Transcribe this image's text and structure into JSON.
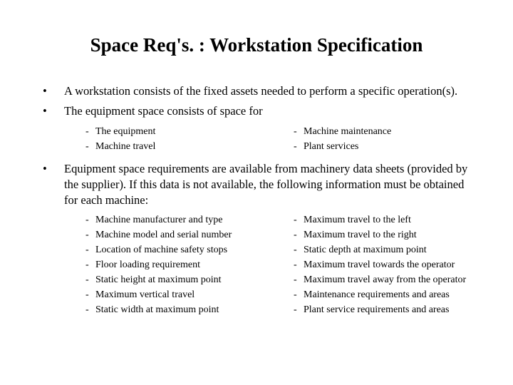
{
  "title": "Space Req's. : Workstation Specification",
  "bullets": [
    {
      "text": "A workstation consists of the fixed assets needed to perform a specific operation(s)."
    },
    {
      "text": "The equipment space consists of space for",
      "sub_left": [
        "The equipment",
        "Machine travel"
      ],
      "sub_right": [
        "Machine maintenance",
        "Plant services"
      ]
    },
    {
      "text": "Equipment space requirements are available from machinery data sheets (provided by the supplier).  If this data is not available, the following information must be obtained for each machine:",
      "sub_left": [
        "Machine manufacturer and type",
        "Machine model and serial number",
        "Location of machine safety stops",
        "Floor loading requirement",
        "Static height at maximum point",
        "Maximum vertical travel",
        "Static width at maximum point"
      ],
      "sub_right": [
        "Maximum travel to the left",
        "Maximum travel to the right",
        "Static depth at maximum point",
        "Maximum travel towards the operator",
        "Maximum travel away from the operator",
        "Maintenance requirements and areas",
        "Plant service requirements and areas"
      ]
    }
  ],
  "colors": {
    "background": "#ffffff",
    "text": "#000000"
  },
  "typography": {
    "title_fontsize": 27,
    "body_fontsize": 16.5,
    "sub_fontsize": 14,
    "font_family": "Georgia, Times New Roman, serif"
  }
}
